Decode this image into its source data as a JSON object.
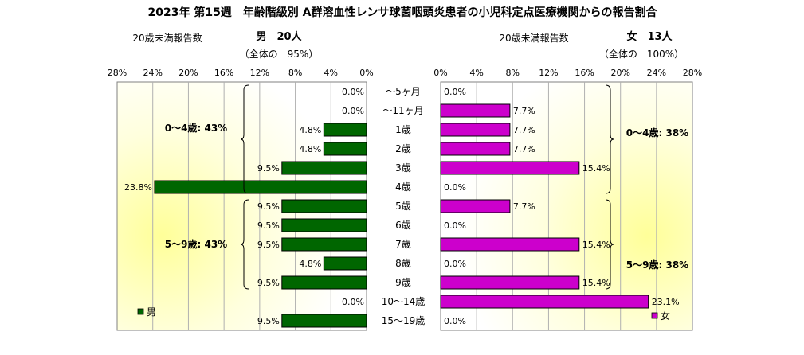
{
  "title": "2023年 第15週　年齢階級別 A群溶血性レンサ球菌咽頭炎患者の小児科定点医療機関からの報告割合",
  "colors": {
    "male_bar": "#006600",
    "female_bar": "#cc00cc",
    "panel_glow": "#ffff99"
  },
  "chart_data": [
    {
      "type": "bar",
      "orientation": "horizontal",
      "side": "left",
      "header_label": "20歳未満報告数",
      "header_value": "男　20人",
      "header_sub": "（全体の　95%）",
      "legend_label": "男",
      "legend_position": "bottom-left",
      "xlim": [
        0,
        28
      ],
      "x_ticks": [
        "28%",
        "24%",
        "20%",
        "16%",
        "12%",
        "8%",
        "4%",
        "0%"
      ],
      "grid": true,
      "categories": [
        "～5ヶ月",
        "～11ヶ月",
        "1歳",
        "2歳",
        "3歳",
        "4歳",
        "5歳",
        "6歳",
        "7歳",
        "8歳",
        "9歳",
        "10～14歳",
        "15～19歳"
      ],
      "values": [
        0,
        0,
        4.8,
        4.8,
        9.5,
        23.8,
        9.5,
        9.5,
        9.5,
        4.8,
        9.5,
        0,
        9.5
      ],
      "value_labels": [
        "0.0%",
        "0.0%",
        "4.8%",
        "4.8%",
        "9.5%",
        "23.8%",
        "9.5%",
        "9.5%",
        "9.5%",
        "4.8%",
        "9.5%",
        "0.0%",
        "9.5%"
      ],
      "groups": [
        {
          "label": "0～4歳: 43%",
          "from": 0,
          "to": 5
        },
        {
          "label": "5～9歳: 43%",
          "from": 6,
          "to": 10
        }
      ]
    },
    {
      "type": "bar",
      "orientation": "horizontal",
      "side": "right",
      "header_label": "20歳未満報告数",
      "header_value": "女　13人",
      "header_sub": "（全体の　100%）",
      "legend_label": "女",
      "legend_position": "bottom-right",
      "xlim": [
        0,
        28
      ],
      "x_ticks": [
        "0%",
        "4%",
        "8%",
        "12%",
        "16%",
        "20%",
        "24%",
        "28%"
      ],
      "grid": true,
      "categories": [
        "～5ヶ月",
        "～11ヶ月",
        "1歳",
        "2歳",
        "3歳",
        "4歳",
        "5歳",
        "6歳",
        "7歳",
        "8歳",
        "9歳",
        "10～14歳",
        "15～19歳"
      ],
      "values": [
        0,
        7.7,
        7.7,
        7.7,
        15.4,
        0,
        7.7,
        0,
        15.4,
        0,
        15.4,
        23.1,
        0
      ],
      "value_labels": [
        "0.0%",
        "7.7%",
        "7.7%",
        "7.7%",
        "15.4%",
        "0.0%",
        "7.7%",
        "0.0%",
        "15.4%",
        "0.0%",
        "15.4%",
        "23.1%",
        "0.0%"
      ],
      "groups": [
        {
          "label": "0～4歳: 38%",
          "from": 0,
          "to": 5
        },
        {
          "label": "5～9歳: 38%",
          "from": 6,
          "to": 10
        }
      ]
    }
  ]
}
